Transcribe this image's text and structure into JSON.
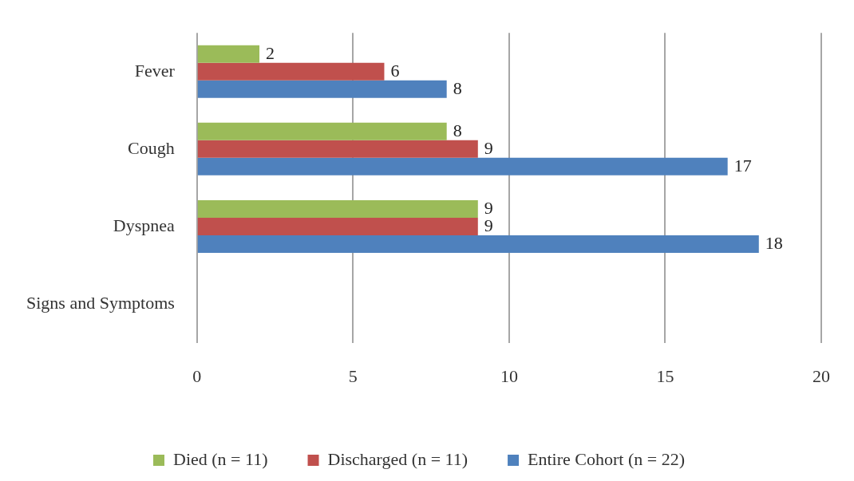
{
  "chart_data": {
    "type": "bar",
    "orientation": "horizontal",
    "categories": [
      "Fever",
      "Cough",
      "Dyspnea",
      "Signs and Symptoms"
    ],
    "series": [
      {
        "name": "Died (n = 11)",
        "color": "#9bbb59",
        "values": [
          2,
          8,
          9,
          null
        ]
      },
      {
        "name": "Discharged (n = 11)",
        "color": "#c0504d",
        "values": [
          6,
          9,
          9,
          null
        ]
      },
      {
        "name": "Entire Cohort (n = 22)",
        "color": "#4f81bd",
        "values": [
          8,
          17,
          18,
          null
        ]
      }
    ],
    "xlim": [
      0,
      20
    ],
    "xticks": [
      0,
      5,
      10,
      15,
      20
    ],
    "grid": "x",
    "legend": "bottom",
    "data_labels": true
  }
}
